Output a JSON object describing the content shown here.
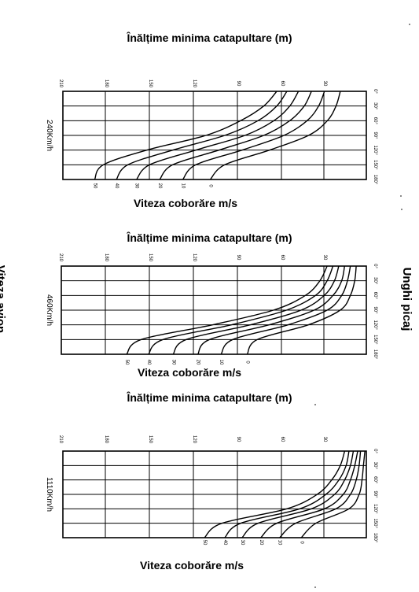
{
  "labels": {
    "left_side": "Viteza avion",
    "right_side": "Unghi picaj"
  },
  "chart_data": [
    {
      "type": "line",
      "title": "Înălțime minima catapultare (m)",
      "xlabel": "Viteza coborăre m/s",
      "speed_label": "240Km/h",
      "x_ticks": [
        "210",
        "180",
        "150",
        "120",
        "90",
        "60",
        "30"
      ],
      "y_ticks": [
        "0°",
        "30°",
        "60°",
        "90°",
        "120°",
        "150°",
        "180°"
      ],
      "series_labels": [
        "50",
        "40",
        "30",
        "20",
        "10",
        "0"
      ],
      "series": [
        {
          "name": "50",
          "x": [
            0,
            30,
            60,
            90,
            120,
            150,
            180
          ],
          "y": [
            62,
            71,
            87,
            111,
            152,
            182,
            188
          ]
        },
        {
          "name": "40",
          "x": [
            0,
            30,
            60,
            90,
            120,
            150,
            180
          ],
          "y": [
            55,
            62,
            75,
            98,
            134,
            165,
            173
          ]
        },
        {
          "name": "30",
          "x": [
            0,
            30,
            60,
            90,
            120,
            150,
            180
          ],
          "y": [
            47,
            53,
            64,
            84,
            118,
            150,
            159
          ]
        },
        {
          "name": "20",
          "x": [
            0,
            30,
            60,
            90,
            120,
            150,
            180
          ],
          "y": [
            38,
            43,
            53,
            71,
            102,
            134,
            143
          ]
        },
        {
          "name": "10",
          "x": [
            0,
            30,
            60,
            90,
            120,
            150,
            180
          ],
          "y": [
            29,
            33,
            41,
            57,
            86,
            118,
            127
          ]
        },
        {
          "name": "0",
          "x": [
            0,
            30,
            60,
            90,
            120,
            150,
            180
          ],
          "y": [
            18,
            21,
            27,
            40,
            67,
            98,
            108
          ]
        }
      ],
      "xlim": [
        210,
        0
      ],
      "ylim": [
        0,
        180
      ]
    },
    {
      "type": "line",
      "title": "Înălțime minima catapultare (m)",
      "xlabel": "Viteza coborăre m/s",
      "speed_label": "460Km/h",
      "x_ticks": [
        "210",
        "180",
        "150",
        "120",
        "90",
        "60",
        "30"
      ],
      "y_ticks": [
        "0°",
        "30°",
        "60°",
        "90°",
        "120°",
        "150°",
        "180°"
      ],
      "series_labels": [
        "50",
        "40",
        "30",
        "20",
        "10",
        "0"
      ],
      "series": [
        {
          "name": "50",
          "x": [
            0,
            30,
            60,
            90,
            120,
            150,
            180
          ],
          "y": [
            27,
            32,
            42,
            64,
            106,
            155,
            165
          ]
        },
        {
          "name": "40",
          "x": [
            0,
            30,
            60,
            90,
            120,
            150,
            180
          ],
          "y": [
            23,
            27,
            35,
            55,
            93,
            140,
            150
          ]
        },
        {
          "name": "30",
          "x": [
            0,
            30,
            60,
            90,
            120,
            150,
            180
          ],
          "y": [
            19,
            22,
            29,
            45,
            80,
            124,
            133
          ]
        },
        {
          "name": "20",
          "x": [
            0,
            30,
            60,
            90,
            120,
            150,
            180
          ],
          "y": [
            15,
            17,
            23,
            36,
            67,
            108,
            116
          ]
        },
        {
          "name": "10",
          "x": [
            0,
            30,
            60,
            90,
            120,
            150,
            180
          ],
          "y": [
            11,
            13,
            17,
            27,
            54,
            92,
            100
          ]
        },
        {
          "name": "0",
          "x": [
            0,
            30,
            60,
            90,
            120,
            150,
            180
          ],
          "y": [
            7,
            8,
            11,
            18,
            40,
            75,
            82
          ]
        }
      ],
      "xlim": [
        210,
        0
      ],
      "ylim": [
        0,
        180
      ]
    },
    {
      "type": "line",
      "title": "Înălțime minima catapultare (m)",
      "xlabel": "Viteza coborăre m/s",
      "speed_label": "1110Km/h",
      "x_ticks": [
        "210",
        "180",
        "150",
        "120",
        "90",
        "60",
        "30"
      ],
      "y_ticks": [
        "0°",
        "30°",
        "60°",
        "90°",
        "120°",
        "150°",
        "180°"
      ],
      "series_labels": [
        "50",
        "40",
        "30",
        "20",
        "10",
        "0"
      ],
      "series": [
        {
          "name": "50",
          "x": [
            0,
            30,
            60,
            90,
            120,
            150,
            180
          ],
          "y": [
            15,
            18,
            24,
            34,
            55,
            100,
            112
          ]
        },
        {
          "name": "40",
          "x": [
            0,
            30,
            60,
            90,
            120,
            150,
            180
          ],
          "y": [
            12,
            14,
            19,
            28,
            46,
            87,
            98
          ]
        },
        {
          "name": "30",
          "x": [
            0,
            30,
            60,
            90,
            120,
            150,
            180
          ],
          "y": [
            9,
            11,
            15,
            22,
            38,
            75,
            86
          ]
        },
        {
          "name": "20",
          "x": [
            0,
            30,
            60,
            90,
            120,
            150,
            180
          ],
          "y": [
            6,
            8,
            11,
            16,
            29,
            62,
            73
          ]
        },
        {
          "name": "10",
          "x": [
            0,
            30,
            60,
            90,
            120,
            150,
            180
          ],
          "y": [
            4,
            5,
            7,
            11,
            21,
            49,
            60
          ]
        },
        {
          "name": "0",
          "x": [
            0,
            30,
            60,
            90,
            120,
            150,
            180
          ],
          "y": [
            1,
            2,
            3,
            5,
            12,
            35,
            45
          ]
        }
      ],
      "xlim": [
        210,
        0
      ],
      "ylim": [
        0,
        180
      ]
    }
  ]
}
